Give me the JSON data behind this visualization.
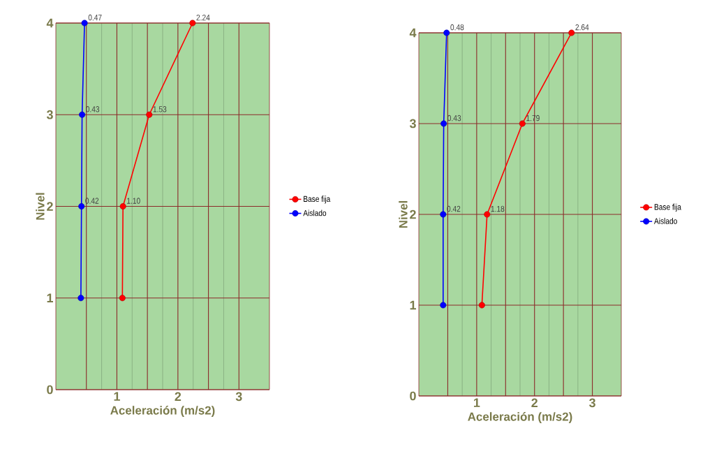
{
  "chart_data": [
    {
      "type": "line",
      "orientation": "horizontal",
      "xlabel": "Aceleración (m/s2)",
      "ylabel": "Nivel",
      "xlim": [
        0,
        3.5
      ],
      "ylim": [
        0,
        4
      ],
      "xticks": [
        {
          "value": 0.5,
          "label": null
        },
        1,
        {
          "value": 1.5,
          "label": null
        },
        2,
        {
          "value": 2.5,
          "label": null
        },
        3
      ],
      "yticks": [
        0,
        1,
        2,
        3,
        4
      ],
      "grid": true,
      "legend": "right",
      "marker": "circle",
      "series": [
        {
          "name": "Base fija",
          "color": "#ff0000",
          "x": [
            1,
            2,
            3,
            4
          ],
          "values": [
            1.09,
            1.1,
            1.53,
            2.24
          ],
          "value_labels": [
            null,
            "1.10",
            "1.53",
            "2.24"
          ]
        },
        {
          "name": "Aislado",
          "color": "#0000ff",
          "x": [
            1,
            2,
            3,
            4
          ],
          "values": [
            0.41,
            0.42,
            0.43,
            0.47
          ],
          "value_labels": [
            null,
            "0.42",
            "0.43",
            "0.47"
          ]
        }
      ]
    },
    {
      "type": "line",
      "orientation": "horizontal",
      "xlabel": "Aceleración (m/s2)",
      "ylabel": "Nivel",
      "xlim": [
        0,
        3.5
      ],
      "ylim": [
        0,
        4
      ],
      "xticks": [
        {
          "value": 0.5,
          "label": null
        },
        1,
        {
          "value": 1.5,
          "label": null
        },
        2,
        {
          "value": 2.5,
          "label": null
        },
        3
      ],
      "yticks": [
        0,
        1,
        2,
        3,
        4
      ],
      "grid": true,
      "legend": "right",
      "marker": "circle",
      "series": [
        {
          "name": "Base fija",
          "color": "#ff0000",
          "x": [
            1,
            2,
            3,
            4
          ],
          "values": [
            1.09,
            1.18,
            1.79,
            2.64
          ],
          "value_labels": [
            null,
            "1.18",
            "1.79",
            "2.64"
          ]
        },
        {
          "name": "Aislado",
          "color": "#0000ff",
          "x": [
            1,
            2,
            3,
            4
          ],
          "values": [
            0.42,
            0.42,
            0.43,
            0.48
          ],
          "value_labels": [
            null,
            "0.42",
            "0.43",
            "0.48"
          ]
        }
      ]
    }
  ]
}
